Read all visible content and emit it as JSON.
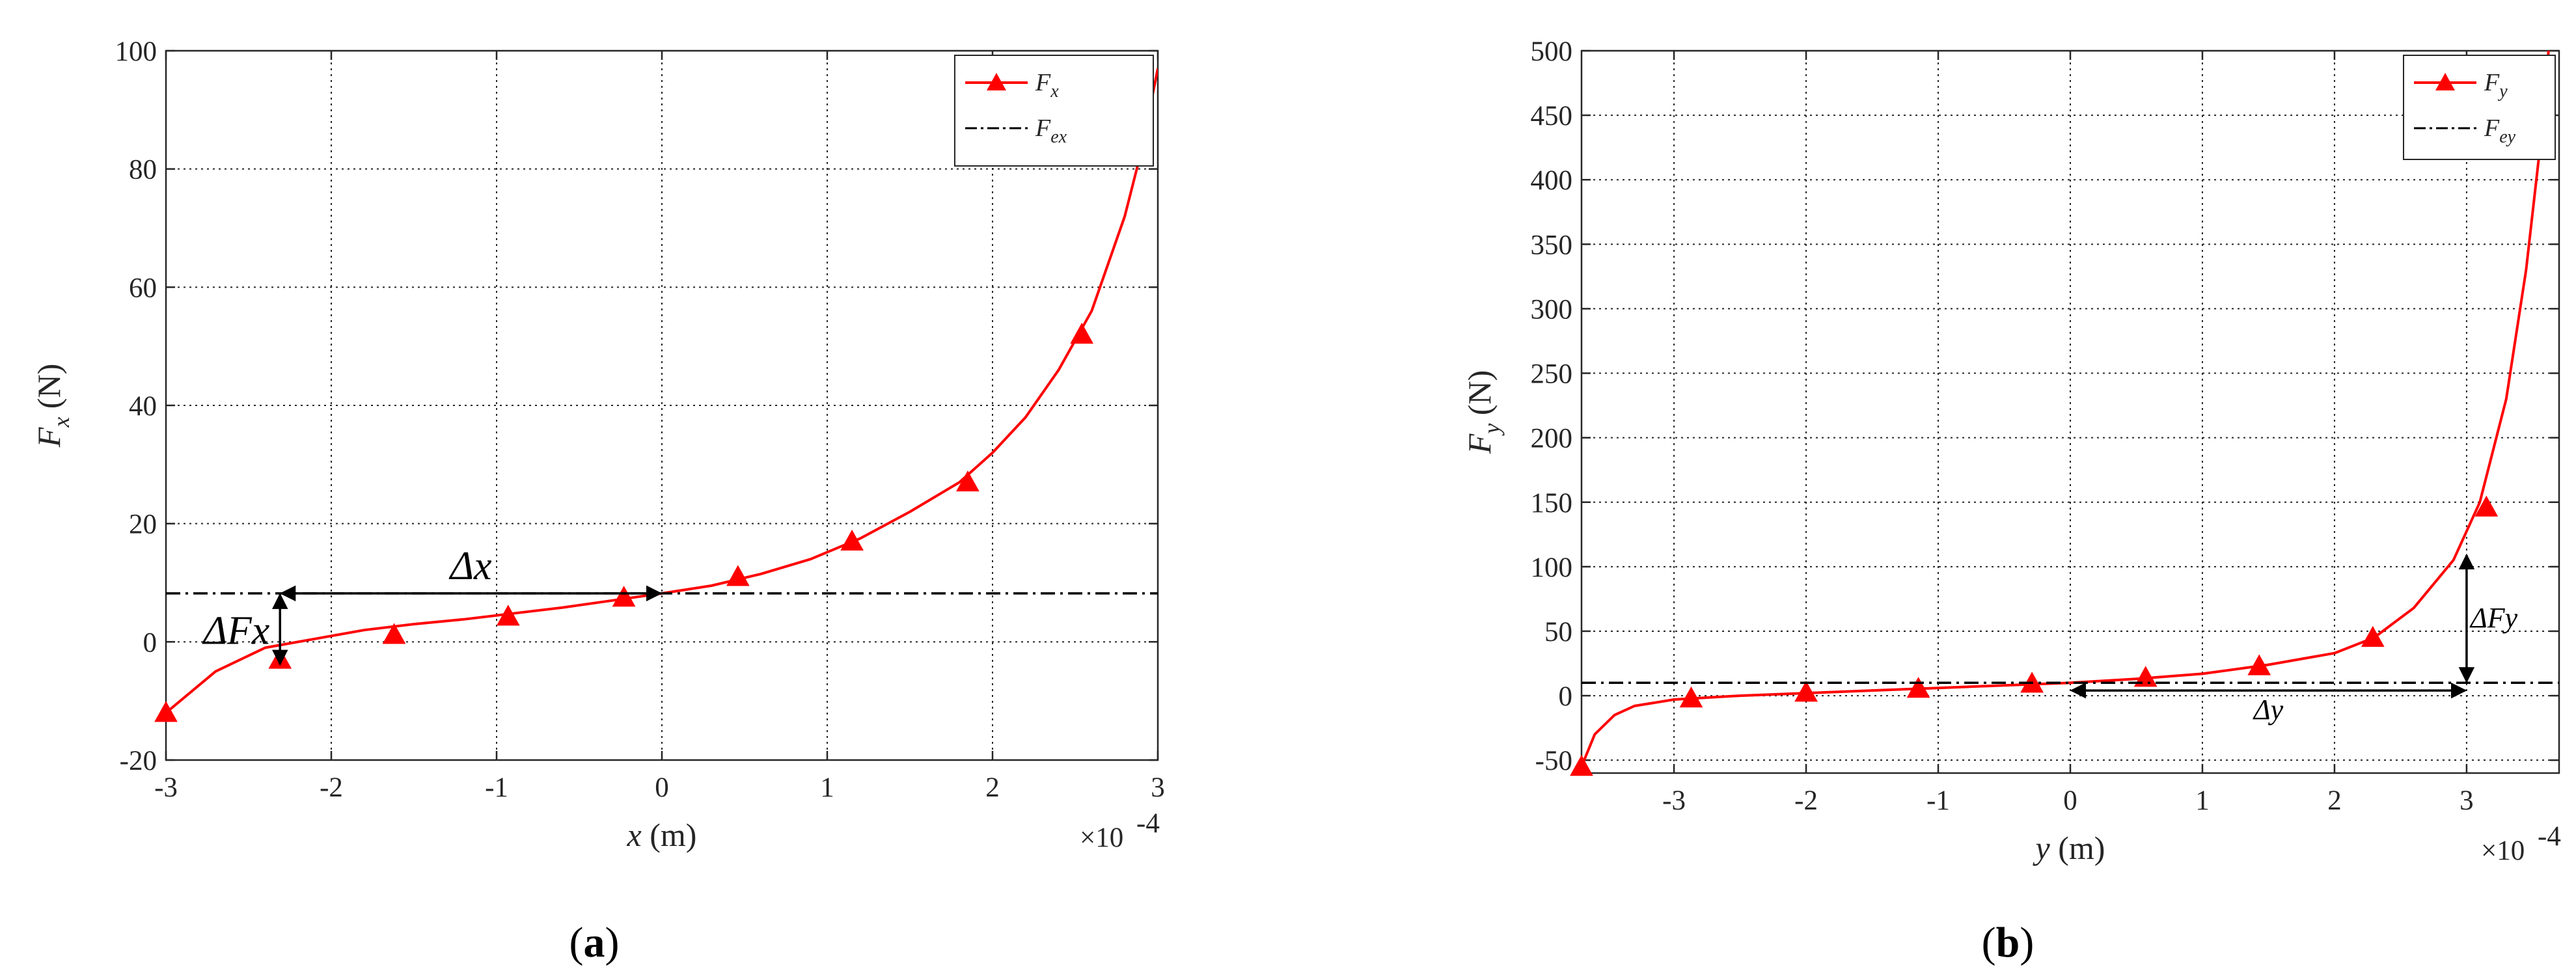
{
  "chart_data": [
    {
      "panel_label": "(a)",
      "type": "line",
      "xlabel": "x (m)",
      "ylabel": "F_x (N)",
      "x_multiplier": "×10",
      "x_multiplier_exp": "-4",
      "xlim": [
        -3,
        3
      ],
      "ylim": [
        -20,
        100
      ],
      "xticks": [
        -3,
        -2,
        -1,
        0,
        1,
        2,
        3
      ],
      "xtick_labels": [
        "-3",
        "-2",
        "-1",
        "0",
        "1",
        "2",
        "3"
      ],
      "yticks": [
        -20,
        0,
        20,
        40,
        60,
        80,
        100
      ],
      "ytick_labels": [
        "-20",
        "0",
        "20",
        "40",
        "60",
        "80",
        "100"
      ],
      "grid": true,
      "legend_position": "top-right",
      "series": [
        {
          "name": "F_x",
          "color": "#ff0000",
          "style": "solid",
          "marker": "triangle",
          "x": [
            -3.0,
            -2.7,
            -2.4,
            -2.1,
            -1.8,
            -1.5,
            -1.2,
            -0.9,
            -0.6,
            -0.3,
            0.0,
            0.3,
            0.6,
            0.9,
            1.2,
            1.5,
            1.8,
            2.0,
            2.2,
            2.4,
            2.6,
            2.8,
            2.9,
            3.0
          ],
          "y": [
            -12,
            -5,
            -1,
            0.5,
            2,
            3,
            3.8,
            4.8,
            5.8,
            7,
            8.2,
            9.5,
            11.5,
            14,
            17.5,
            22,
            27,
            32,
            38,
            46,
            56,
            72,
            83,
            97
          ],
          "markers_x": [
            -3.0,
            -2.31,
            -1.62,
            -0.93,
            -0.23,
            0.46,
            1.15,
            1.85,
            2.54
          ],
          "markers_y": [
            -12,
            -3,
            1.2,
            4.3,
            7.5,
            11,
            17,
            27,
            52
          ]
        },
        {
          "name": "F_ex",
          "color": "#000000",
          "style": "dash-dot",
          "marker": "none",
          "x": [
            -3,
            3
          ],
          "y": [
            8.2,
            8.2
          ]
        }
      ],
      "annotations": [
        {
          "text": "Δx",
          "kind": "horizontal-arrow",
          "x_from": -2.31,
          "x_to": 0.0,
          "y": 8.2
        },
        {
          "text": "ΔFx",
          "kind": "vertical-arrow",
          "x": -2.31,
          "y_from": 8.2,
          "y_to": -4
        }
      ]
    },
    {
      "panel_label": "(b)",
      "type": "line",
      "xlabel": "y (m)",
      "ylabel": "F_y (N)",
      "x_multiplier": "×10",
      "x_multiplier_exp": "-4",
      "xlim": [
        -3.7,
        3.7
      ],
      "ylim": [
        -60,
        500
      ],
      "xticks": [
        -3,
        -2,
        -1,
        0,
        1,
        2,
        3
      ],
      "xtick_labels": [
        "-3",
        "-2",
        "-1",
        "0",
        "1",
        "2",
        "3"
      ],
      "yticks": [
        -50,
        0,
        50,
        100,
        150,
        200,
        250,
        300,
        350,
        400,
        450,
        500
      ],
      "ytick_labels": [
        "-50",
        "0",
        "50",
        "100",
        "150",
        "200",
        "250",
        "300",
        "350",
        "400",
        "450",
        "500"
      ],
      "grid": true,
      "legend_position": "top-right",
      "series": [
        {
          "name": "F_y",
          "color": "#ff0000",
          "style": "solid",
          "marker": "triangle",
          "x": [
            -3.7,
            -3.6,
            -3.45,
            -3.3,
            -3.0,
            -2.5,
            -2.0,
            -1.5,
            -1.0,
            -0.5,
            0.0,
            0.5,
            1.0,
            1.5,
            2.0,
            2.3,
            2.6,
            2.9,
            3.1,
            3.3,
            3.45,
            3.55,
            3.62
          ],
          "y": [
            -55,
            -30,
            -15,
            -8,
            -3,
            0,
            2,
            4,
            6,
            8,
            10,
            13,
            17,
            24,
            33,
            45,
            68,
            105,
            150,
            230,
            330,
            420,
            500
          ],
          "markers_x": [
            -3.7,
            -2.87,
            -2.0,
            -1.15,
            -0.29,
            0.57,
            1.43,
            2.29,
            3.15
          ],
          "markers_y": [
            -55,
            -2,
            2.5,
            5.5,
            9.5,
            14,
            23,
            45,
            146
          ]
        },
        {
          "name": "F_ey",
          "color": "#000000",
          "style": "dash-dot",
          "marker": "none",
          "x": [
            -3.7,
            3.7
          ],
          "y": [
            10,
            10
          ]
        }
      ],
      "annotations": [
        {
          "text": "Δy",
          "kind": "horizontal-arrow",
          "x_from": 0.0,
          "x_to": 3.0,
          "y": 4
        },
        {
          "text": "ΔFy",
          "kind": "vertical-arrow",
          "x": 3.0,
          "y_from": 110,
          "y_to": 10
        }
      ]
    }
  ]
}
